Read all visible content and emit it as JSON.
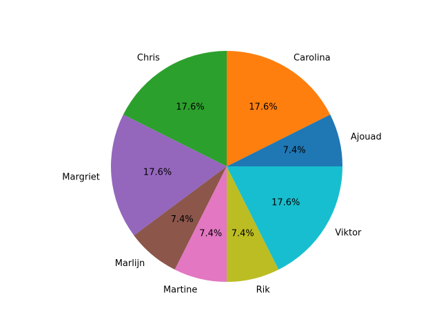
{
  "chart_data": {
    "type": "pie",
    "title": "",
    "start_angle_deg": 0,
    "direction": "counterclockwise",
    "slices": [
      {
        "label": "Ajouad",
        "value": 7.4,
        "pct_label": "7.4%",
        "color": "#1f77b4"
      },
      {
        "label": "Carolina",
        "value": 17.6,
        "pct_label": "17.6%",
        "color": "#ff7f0e"
      },
      {
        "label": "Chris",
        "value": 17.6,
        "pct_label": "17.6%",
        "color": "#2ca02c"
      },
      {
        "label": "Margriet",
        "value": 17.6,
        "pct_label": "17.6%",
        "color": "#9467bd"
      },
      {
        "label": "Marlijn",
        "value": 7.4,
        "pct_label": "7.4%",
        "color": "#8c564b"
      },
      {
        "label": "Martine",
        "value": 7.4,
        "pct_label": "7.4%",
        "color": "#e377c2"
      },
      {
        "label": "Rik",
        "value": 7.4,
        "pct_label": "7.4%",
        "color": "#bcbd22"
      },
      {
        "label": "Viktor",
        "value": 17.6,
        "pct_label": "17.6%",
        "color": "#17becf"
      }
    ]
  }
}
